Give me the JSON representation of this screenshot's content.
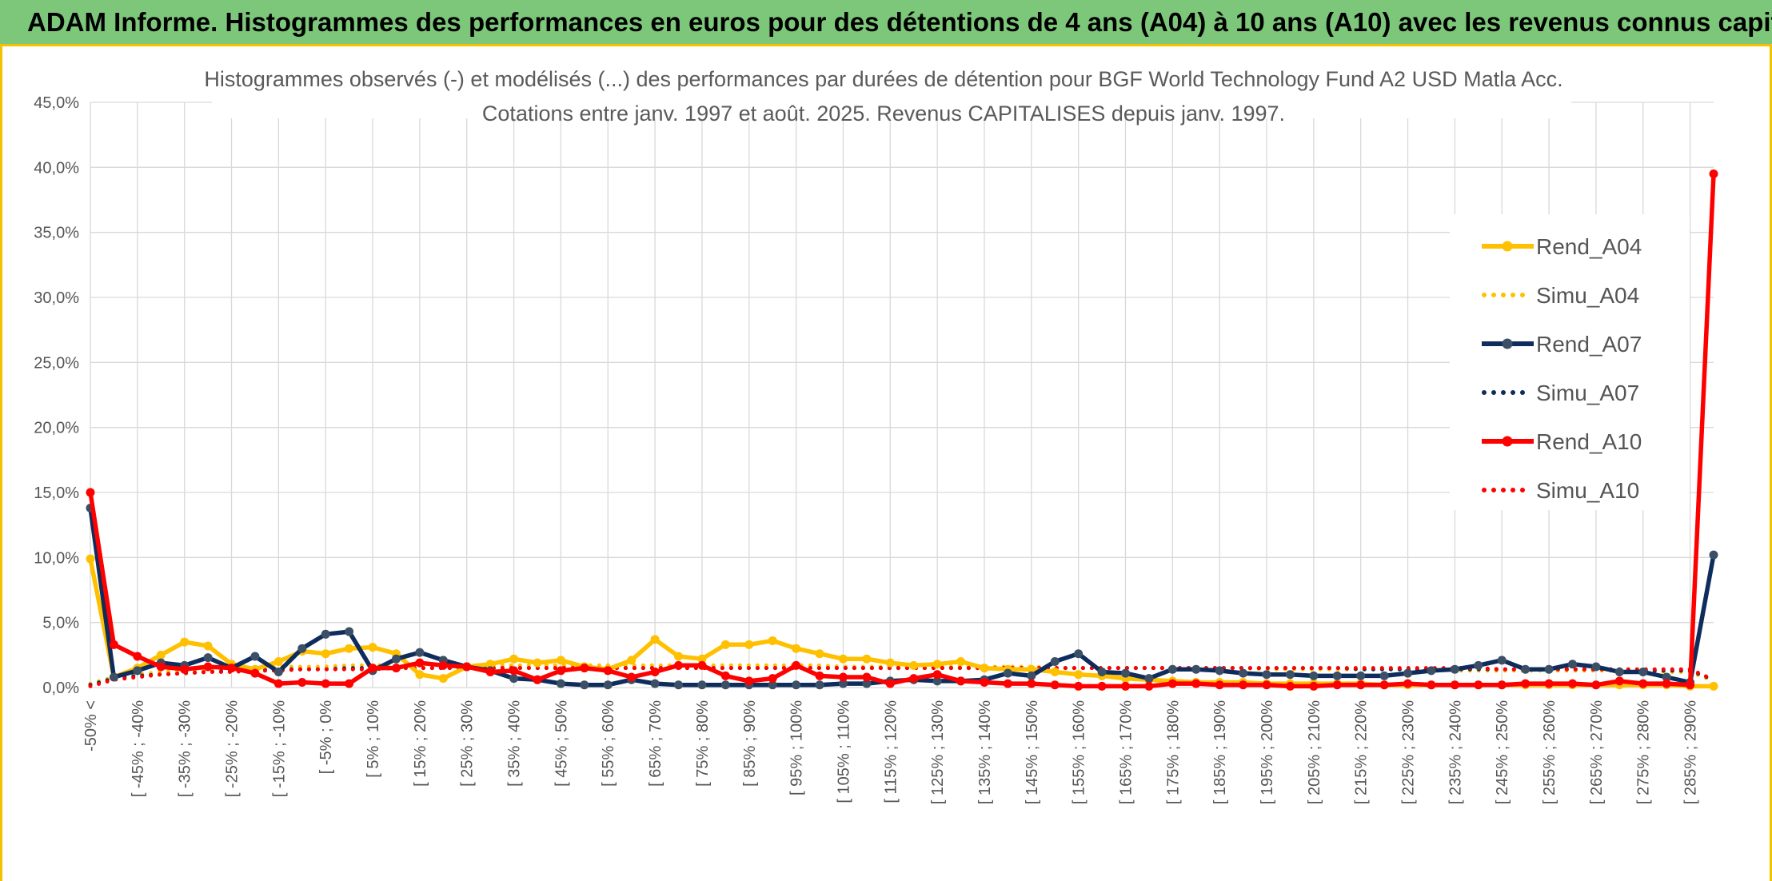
{
  "banner": {
    "title": "ADAM Informe. Histogrammes des performances en euros pour des détentions de 4 ans (A04) à 10 ans (A10) avec les revenus connus capitalisés"
  },
  "colors": {
    "banner_bg": "#7dc77a",
    "frame_accent": "#f2c200",
    "a04": "#ffc000",
    "a07": "#0f2d5c",
    "a10": "#ff0000"
  },
  "chart_data": {
    "type": "line",
    "title": "Histogrammes observés (-) et modélisés (...) des performances par durées de détention pour BGF World Technology Fund A2 USD Matla Acc.",
    "subtitle": "Cotations entre janv. 1997 et août. 2025. Revenus CAPITALISES depuis janv. 1997.",
    "ylim": [
      0,
      45
    ],
    "y_ticks": [
      "0,0%",
      "5,0%",
      "10,0%",
      "15,0%",
      "20,0%",
      "25,0%",
      "30,0%",
      "35,0%",
      "40,0%",
      "45,0%"
    ],
    "y_tick_values": [
      0,
      5,
      10,
      15,
      20,
      25,
      30,
      35,
      40,
      45
    ],
    "x_tick_labels": [
      "-50% <",
      "[ -45% ; -40%",
      "[ -35% ; -30%",
      "[ -25% ; -20%",
      "[ -15% ; -10%",
      "[ -5% ; 0%",
      "[ 5% ; 10%",
      "[ 15% ; 20%",
      "[ 25% ; 30%",
      "[ 35% ; 40%",
      "[ 45% ; 50%",
      "[ 55% ; 60%",
      "[ 65% ; 70%",
      "[ 75% ; 80%",
      "[ 85% ; 90%",
      "[ 95% ; 100%",
      "[ 105% ; 110%",
      "[ 115% ; 120%",
      "[ 125% ; 130%",
      "[ 135% ; 140%",
      "[ 145% ; 150%",
      "[ 155% ; 160%",
      "[ 165% ; 170%",
      "[ 175% ; 180%",
      "[ 185% ; 190%",
      "[ 195% ; 200%",
      "[ 205% ; 210%",
      "[ 215% ; 220%",
      "[ 225% ; 230%",
      "[ 235% ; 240%",
      "[ 245% ; 250%",
      "[ 255% ; 260%",
      "[ 265% ; 270%",
      "[ 275% ; 280%",
      "[ 285% ; 290%"
    ],
    "x_tick_every": 2,
    "n_points": 70,
    "legend": {
      "position": "right"
    },
    "grid": true,
    "series": [
      {
        "name": "Rend_A04",
        "style": "solid",
        "markers": true,
        "color": "#ffc000",
        "values": [
          9.9,
          0.8,
          1.5,
          2.5,
          3.5,
          3.2,
          1.8,
          1.4,
          2.0,
          2.8,
          2.6,
          3.0,
          3.1,
          2.6,
          1.0,
          0.7,
          1.6,
          1.8,
          2.2,
          1.9,
          2.1,
          1.6,
          1.4,
          2.1,
          3.7,
          2.4,
          2.2,
          3.3,
          3.3,
          3.6,
          3.0,
          2.6,
          2.2,
          2.2,
          1.9,
          1.7,
          1.8,
          2.0,
          1.5,
          1.4,
          1.4,
          1.2,
          1.0,
          0.9,
          0.7,
          0.6,
          0.5,
          0.4,
          0.4,
          0.4,
          0.3,
          0.3,
          0.3,
          0.3,
          0.3,
          0.2,
          0.2,
          0.2,
          0.2,
          0.2,
          0.2,
          0.2,
          0.2,
          0.2,
          0.2,
          0.2,
          0.2,
          0.2,
          0.1,
          0.1
        ]
      },
      {
        "name": "Simu_A04",
        "style": "dotted",
        "markers": false,
        "color": "#ffc000",
        "values": [
          0.3,
          0.8,
          1.0,
          1.2,
          1.3,
          1.4,
          1.5,
          1.5,
          1.6,
          1.6,
          1.6,
          1.7,
          1.7,
          1.7,
          1.7,
          1.7,
          1.7,
          1.7,
          1.7,
          1.7,
          1.7,
          1.7,
          1.7,
          1.7,
          1.7,
          1.7,
          1.7,
          1.7,
          1.7,
          1.7,
          1.7,
          1.7,
          1.6,
          1.6,
          1.6,
          1.6,
          1.6,
          1.6,
          1.6,
          1.6,
          1.6,
          1.5,
          1.5,
          1.5,
          1.5,
          1.5,
          1.5,
          1.5,
          1.5,
          1.5,
          1.4,
          1.4,
          1.4,
          1.4,
          1.4,
          1.4,
          1.4,
          1.4,
          1.3,
          1.3,
          1.3,
          1.3,
          1.3,
          1.3,
          1.3,
          1.3,
          1.3,
          1.2,
          1.2,
          0.5
        ]
      },
      {
        "name": "Rend_A07",
        "style": "solid",
        "markers": true,
        "color": "#0f2d5c",
        "values": [
          13.8,
          0.8,
          1.3,
          1.9,
          1.7,
          2.3,
          1.5,
          2.4,
          1.2,
          3.0,
          4.1,
          4.3,
          1.3,
          2.2,
          2.7,
          2.1,
          1.6,
          1.3,
          0.7,
          0.6,
          0.3,
          0.2,
          0.2,
          0.6,
          0.3,
          0.2,
          0.2,
          0.2,
          0.2,
          0.2,
          0.2,
          0.2,
          0.3,
          0.3,
          0.5,
          0.6,
          0.5,
          0.5,
          0.6,
          1.1,
          0.9,
          2.0,
          2.6,
          1.2,
          1.1,
          0.7,
          1.4,
          1.4,
          1.3,
          1.1,
          1.0,
          1.0,
          0.9,
          0.9,
          0.9,
          0.9,
          1.1,
          1.3,
          1.4,
          1.7,
          2.1,
          1.4,
          1.4,
          1.8,
          1.6,
          1.2,
          1.2,
          0.8,
          0.4,
          10.2
        ]
      },
      {
        "name": "Simu_A07",
        "style": "dotted",
        "markers": false,
        "color": "#0f2d5c",
        "values": [
          0.2,
          0.7,
          0.9,
          1.0,
          1.1,
          1.2,
          1.3,
          1.3,
          1.4,
          1.4,
          1.4,
          1.5,
          1.5,
          1.5,
          1.5,
          1.5,
          1.5,
          1.5,
          1.5,
          1.5,
          1.5,
          1.5,
          1.5,
          1.5,
          1.5,
          1.5,
          1.5,
          1.5,
          1.5,
          1.5,
          1.5,
          1.5,
          1.5,
          1.5,
          1.5,
          1.5,
          1.5,
          1.5,
          1.5,
          1.5,
          1.5,
          1.5,
          1.5,
          1.5,
          1.5,
          1.5,
          1.5,
          1.5,
          1.5,
          1.5,
          1.5,
          1.5,
          1.5,
          1.5,
          1.4,
          1.4,
          1.4,
          1.4,
          1.4,
          1.4,
          1.4,
          1.4,
          1.4,
          1.4,
          1.4,
          1.4,
          1.3,
          1.3,
          1.3,
          0.6
        ]
      },
      {
        "name": "Rend_A10",
        "style": "solid",
        "markers": true,
        "color": "#ff0000",
        "values": [
          15.0,
          3.3,
          2.4,
          1.6,
          1.4,
          1.6,
          1.5,
          1.1,
          0.3,
          0.4,
          0.3,
          0.3,
          1.5,
          1.5,
          1.9,
          1.7,
          1.6,
          1.2,
          1.3,
          0.6,
          1.3,
          1.5,
          1.3,
          0.8,
          1.2,
          1.7,
          1.7,
          0.9,
          0.5,
          0.7,
          1.7,
          0.9,
          0.8,
          0.8,
          0.3,
          0.7,
          1.0,
          0.5,
          0.4,
          0.3,
          0.3,
          0.2,
          0.1,
          0.1,
          0.1,
          0.1,
          0.3,
          0.3,
          0.2,
          0.2,
          0.2,
          0.1,
          0.1,
          0.2,
          0.2,
          0.2,
          0.3,
          0.2,
          0.2,
          0.2,
          0.2,
          0.3,
          0.3,
          0.3,
          0.2,
          0.5,
          0.3,
          0.3,
          0.2,
          39.5
        ]
      },
      {
        "name": "Simu_A10",
        "style": "dotted",
        "markers": false,
        "color": "#ff0000",
        "values": [
          0.1,
          0.6,
          0.8,
          1.0,
          1.1,
          1.2,
          1.2,
          1.3,
          1.3,
          1.4,
          1.4,
          1.4,
          1.4,
          1.5,
          1.5,
          1.5,
          1.5,
          1.5,
          1.5,
          1.5,
          1.5,
          1.5,
          1.5,
          1.5,
          1.5,
          1.5,
          1.5,
          1.5,
          1.5,
          1.5,
          1.5,
          1.5,
          1.5,
          1.5,
          1.5,
          1.5,
          1.5,
          1.5,
          1.5,
          1.5,
          1.5,
          1.5,
          1.5,
          1.5,
          1.5,
          1.5,
          1.5,
          1.5,
          1.5,
          1.5,
          1.5,
          1.5,
          1.5,
          1.5,
          1.5,
          1.5,
          1.5,
          1.5,
          1.5,
          1.5,
          1.4,
          1.4,
          1.4,
          1.4,
          1.4,
          1.4,
          1.4,
          1.4,
          1.4,
          0.6
        ]
      }
    ]
  }
}
